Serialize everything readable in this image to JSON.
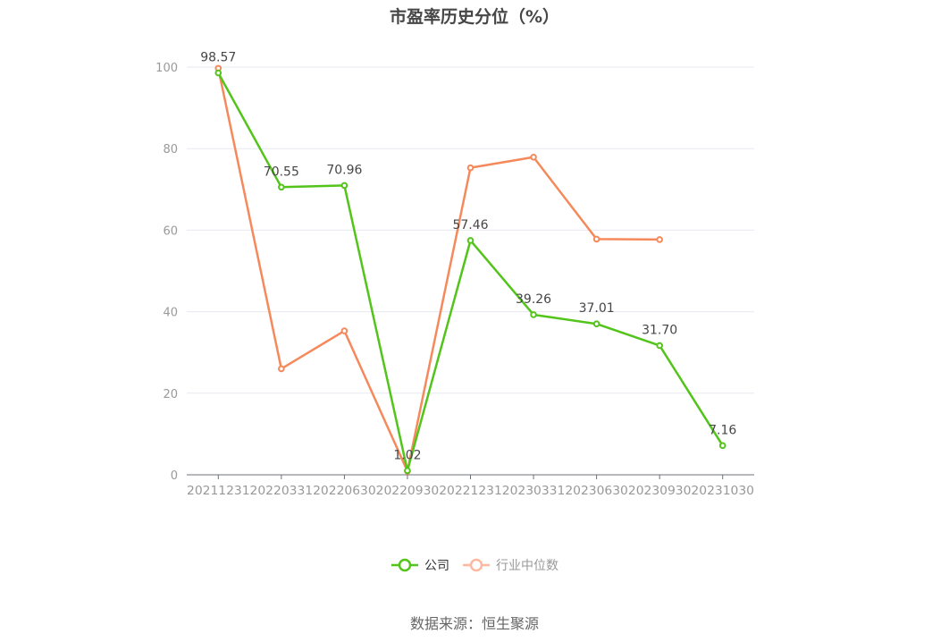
{
  "title": "市盈率历史分位（%）",
  "source": "数据来源：恒生聚源",
  "legend": {
    "company_label": "公司",
    "industry_label": "行业中位数"
  },
  "colors": {
    "company": "#52c41a",
    "industry": "#f5895b",
    "industry_legend": "#fbb9a0",
    "grid": "#e6e9f0",
    "axis": "#999999"
  },
  "chart_data": {
    "type": "line",
    "title": "市盈率历史分位（%）",
    "xlabel": "",
    "ylabel": "",
    "ylim": [
      0,
      100
    ],
    "yticks": [
      0,
      20,
      40,
      60,
      80,
      100
    ],
    "grid": true,
    "legend_position": "bottom",
    "categories": [
      "20211231",
      "20220331",
      "20220630",
      "20220930",
      "20221231",
      "20230331",
      "20230630",
      "20230930",
      "20231030"
    ],
    "series": [
      {
        "name": "公司",
        "values": [
          98.57,
          70.55,
          70.96,
          1.02,
          57.46,
          39.26,
          37.01,
          31.7,
          7.16
        ],
        "labels": [
          "98.57",
          "70.55",
          "70.96",
          "1.02",
          "57.46",
          "39.26",
          "37.01",
          "31.70",
          "7.16"
        ]
      },
      {
        "name": "行业中位数",
        "values": [
          99.7,
          26.0,
          35.3,
          0.9,
          75.3,
          77.9,
          57.8,
          57.7,
          null
        ]
      }
    ]
  }
}
